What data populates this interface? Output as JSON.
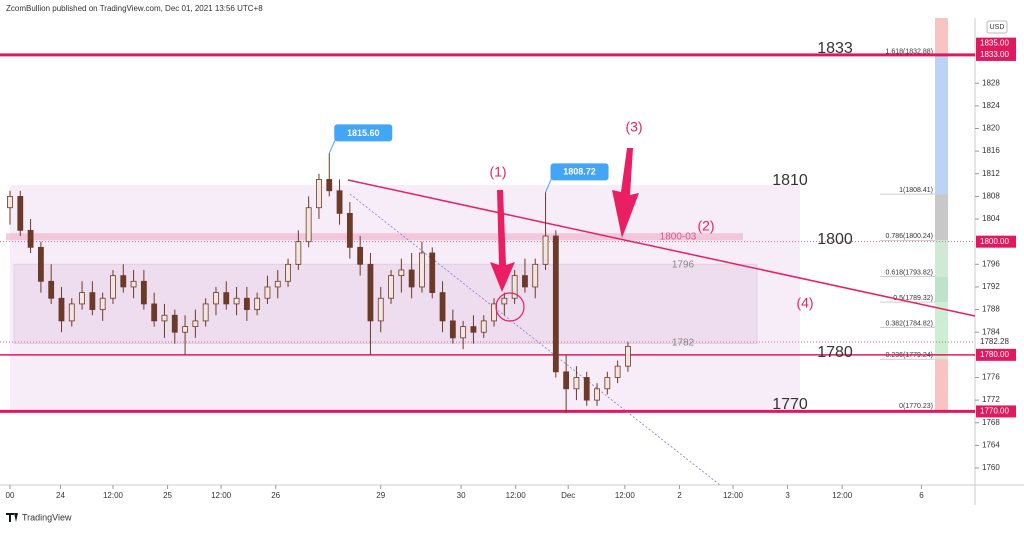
{
  "header": "ZcomBullion published on TradingView.com, Dec 01, 2021 13:56 UTC+8",
  "footer": "TradingView",
  "chart_data": {
    "type": "candlestick",
    "currency": "USD",
    "ylim": [
      1757,
      1836.7
    ],
    "yticks": [
      1760,
      1764,
      1768,
      1772,
      1776,
      1784,
      1788,
      1792,
      1796,
      1804,
      1808,
      1812,
      1816,
      1820,
      1824,
      1828
    ],
    "xlim": [
      -0.97,
      93.7
    ],
    "xticks": [
      {
        "value": 0,
        "label": "00"
      },
      {
        "value": 4.9,
        "label": "24"
      },
      {
        "value": 10,
        "label": "12:00"
      },
      {
        "value": 15.3,
        "label": "25"
      },
      {
        "value": 20.5,
        "label": "12:00"
      },
      {
        "value": 25.8,
        "label": "26"
      },
      {
        "value": 36,
        "label": "29"
      },
      {
        "value": 43.8,
        "label": "30"
      },
      {
        "value": 49.1,
        "label": "12:00"
      },
      {
        "value": 54.2,
        "label": "Dec"
      },
      {
        "value": 59.7,
        "label": "12:00"
      },
      {
        "value": 65,
        "label": "2"
      },
      {
        "value": 70.2,
        "label": "12:00"
      },
      {
        "value": 75.5,
        "label": "3"
      },
      {
        "value": 80.8,
        "label": "12:00"
      },
      {
        "value": 88.5,
        "label": "6"
      }
    ],
    "open": [
      1806,
      1808,
      1802,
      1799,
      1793,
      1790,
      1786,
      1789,
      1791,
      1788,
      1790,
      1794,
      1792,
      1793,
      1789,
      1786,
      1787,
      1784,
      1785,
      1786,
      1789,
      1791,
      1789,
      1790,
      1788,
      1790,
      1792,
      1793,
      1796,
      1800,
      1806,
      1811,
      1809,
      1805,
      1799,
      1796,
      1786,
      1790,
      1794,
      1795,
      1792,
      1798,
      1791,
      1786,
      1783,
      1785,
      1784,
      1786,
      1789,
      1790,
      1794,
      1792,
      1796,
      1801,
      1777,
      1774,
      1776,
      1772,
      1774,
      1776,
      1778
    ],
    "high": [
      1809,
      1809,
      1804,
      1800,
      1796,
      1792,
      1790,
      1793,
      1793,
      1791,
      1795,
      1796,
      1795,
      1795,
      1791,
      1789,
      1788,
      1787,
      1788,
      1790,
      1792,
      1793,
      1792,
      1792,
      1791,
      1794,
      1795,
      1797,
      1802,
      1808,
      1812,
      1815.6,
      1811,
      1807,
      1801,
      1798,
      1792,
      1795,
      1797,
      1798,
      1800,
      1799,
      1793,
      1788,
      1786,
      1787,
      1787,
      1790,
      1791,
      1795,
      1797,
      1797,
      1808.72,
      1802,
      1780,
      1778,
      1777,
      1775,
      1777,
      1779,
      1782.3
    ],
    "low": [
      1803,
      1801,
      1798,
      1791,
      1789,
      1784,
      1785,
      1788,
      1787,
      1786,
      1789,
      1791,
      1790,
      1788,
      1785,
      1783,
      1782,
      1780,
      1783,
      1785,
      1787,
      1788,
      1787,
      1786,
      1787,
      1789,
      1790,
      1792,
      1795,
      1799,
      1804,
      1808,
      1803,
      1797,
      1794,
      1780,
      1784,
      1789,
      1791,
      1790,
      1791,
      1790,
      1784,
      1782,
      1781,
      1782,
      1783,
      1785,
      1787,
      1789,
      1791,
      1790,
      1795,
      1776,
      1769.7,
      1772,
      1771,
      1771,
      1773,
      1775,
      1777
    ],
    "close": [
      1808,
      1802,
      1799,
      1793,
      1790,
      1786,
      1789,
      1791,
      1788,
      1790,
      1794,
      1792,
      1793,
      1789,
      1786,
      1787,
      1784,
      1785,
      1786,
      1789,
      1791,
      1789,
      1790,
      1788,
      1790,
      1792,
      1793,
      1796,
      1800,
      1806,
      1811,
      1809,
      1805,
      1799,
      1796,
      1786,
      1790,
      1794,
      1795,
      1792,
      1798,
      1791,
      1786,
      1783,
      1785,
      1784,
      1786,
      1789,
      1790,
      1794,
      1792,
      1796,
      1801,
      1777,
      1774,
      1776,
      1772,
      1774,
      1776,
      1778,
      1781.5
    ],
    "up_color": "#f3e6e0",
    "down_color": "#6b3a28",
    "price_tags": [
      {
        "value": 1835,
        "label": "1835.00",
        "line": "none"
      },
      {
        "value": 1833,
        "label": "1833.00",
        "line": "thick"
      },
      {
        "value": 1800,
        "label": "1800.00",
        "line": "dotted"
      },
      {
        "value": 1782.28,
        "label": "1782.28",
        "line": "dotted"
      },
      {
        "value": 1780,
        "label": "1780.00",
        "line": "thin"
      },
      {
        "value": 1770,
        "label": "1770.00",
        "line": "thick"
      }
    ],
    "level_labels": [
      1833,
      1810,
      1800,
      1780,
      1770
    ],
    "zone_labels": [
      {
        "value": 1801.5,
        "label": "1800-03"
      },
      1796,
      1782
    ],
    "fib_levels": [
      {
        "value": 1832.88,
        "label": "1.618(1832.88)"
      },
      {
        "value": 1808.41,
        "label": "1(1808.41)"
      },
      {
        "value": 1800.24,
        "label": "0.786(1800.24)"
      },
      {
        "value": 1793.82,
        "label": "0.618(1793.82)"
      },
      {
        "value": 1789.32,
        "label": "0.5(1789.32)"
      },
      {
        "value": 1784.82,
        "label": "0.382(1784.82)"
      },
      {
        "value": 1779.24,
        "label": "0.236(1779.24)"
      },
      {
        "value": 1770.23,
        "label": "0(1770.23)"
      }
    ],
    "callouts": [
      {
        "value": 1815.6,
        "label": "1815.60"
      },
      {
        "value": 1808.72,
        "label": "1808.72"
      }
    ],
    "annotations": [
      "(1)",
      "(2)",
      "(3)",
      "(4)"
    ]
  }
}
